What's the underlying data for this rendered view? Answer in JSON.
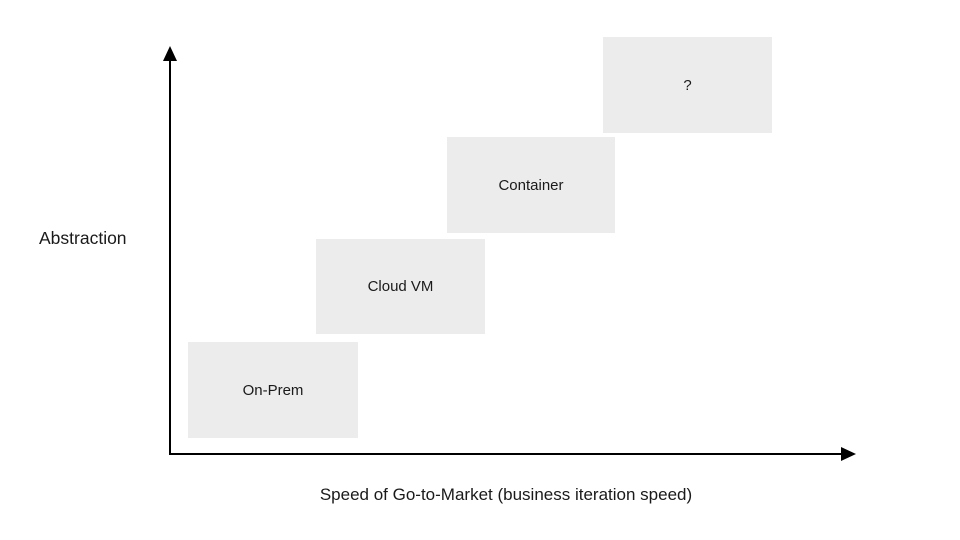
{
  "diagram": {
    "y_axis_label": "Abstraction",
    "x_axis_label": "Speed of Go-to-Market (business iteration speed)",
    "boxes": [
      {
        "label": "On-Prem"
      },
      {
        "label": "Cloud VM"
      },
      {
        "label": "Container"
      },
      {
        "label": "?"
      }
    ],
    "colors": {
      "background": "#ffffff",
      "box_fill": "#ececec",
      "text": "#1a1a1a",
      "axis": "#000000"
    }
  }
}
